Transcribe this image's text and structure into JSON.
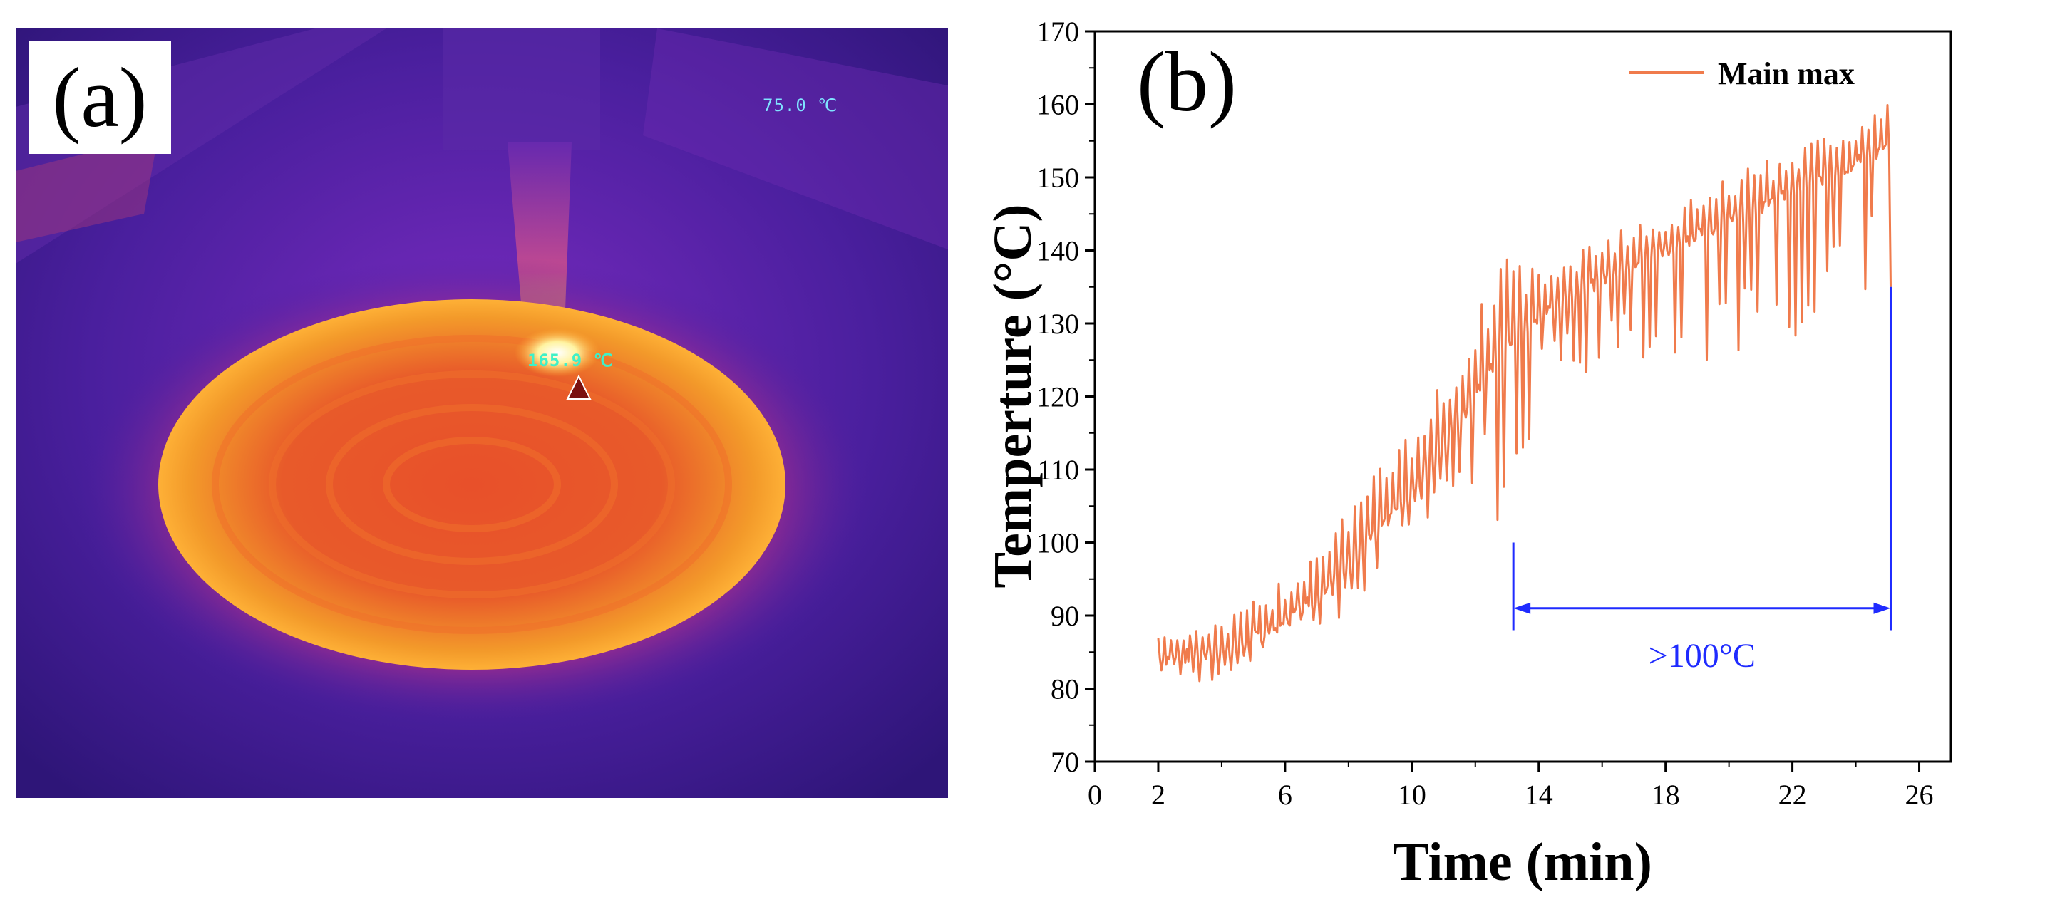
{
  "figure": {
    "panel_a_label": "(a)",
    "panel_b_label": "(b)"
  },
  "thermal_image": {
    "readout_top": "75.0 ℃",
    "readout_hotspot": "165.9 ℃"
  },
  "chart_data": {
    "type": "line",
    "title": "",
    "xlabel": "Time (min)",
    "ylabel": "Temperture (°C)",
    "xlim": [
      0,
      27
    ],
    "ylim": [
      70,
      170
    ],
    "xticks": [
      0,
      2,
      6,
      10,
      14,
      18,
      22,
      26
    ],
    "yticks": [
      70,
      80,
      90,
      100,
      110,
      120,
      130,
      140,
      150,
      160,
      170
    ],
    "legend": {
      "position": "top-right",
      "entries": [
        "Main max"
      ]
    },
    "series": [
      {
        "name": "Main max",
        "color": "#f07b4c",
        "trend": {
          "x": [
            2,
            4,
            6,
            8,
            10,
            12,
            13,
            13.3,
            14,
            16,
            18,
            20,
            22,
            24,
            25.1
          ],
          "y": [
            84,
            85,
            89,
            97,
            107,
            120,
            127,
            128,
            131,
            136,
            140,
            144,
            148,
            152,
            154
          ]
        },
        "peaks": {
          "x": [
            2,
            4,
            6,
            8,
            10,
            12,
            13,
            14,
            16,
            18,
            20,
            22,
            24,
            25
          ],
          "y": [
            88,
            89,
            95,
            106,
            115,
            131,
            141,
            137,
            142,
            145,
            150,
            154,
            158,
            161
          ]
        },
        "troughs": {
          "x": [
            2,
            4,
            6,
            8,
            10,
            12,
            13.2,
            14,
            16,
            18,
            20,
            22,
            24,
            25
          ],
          "y": [
            81,
            81,
            86,
            90,
            102,
            106,
            99,
            122,
            122,
            123,
            122,
            127,
            133,
            135
          ]
        }
      }
    ],
    "annotations": [
      {
        "text": ">100°C",
        "x_start": 13.2,
        "x_end": 25.1,
        "y_arrow": 91,
        "y_text_level": 83,
        "bracket_tops": [
          100,
          135
        ],
        "color": "#1f2bff"
      }
    ]
  }
}
